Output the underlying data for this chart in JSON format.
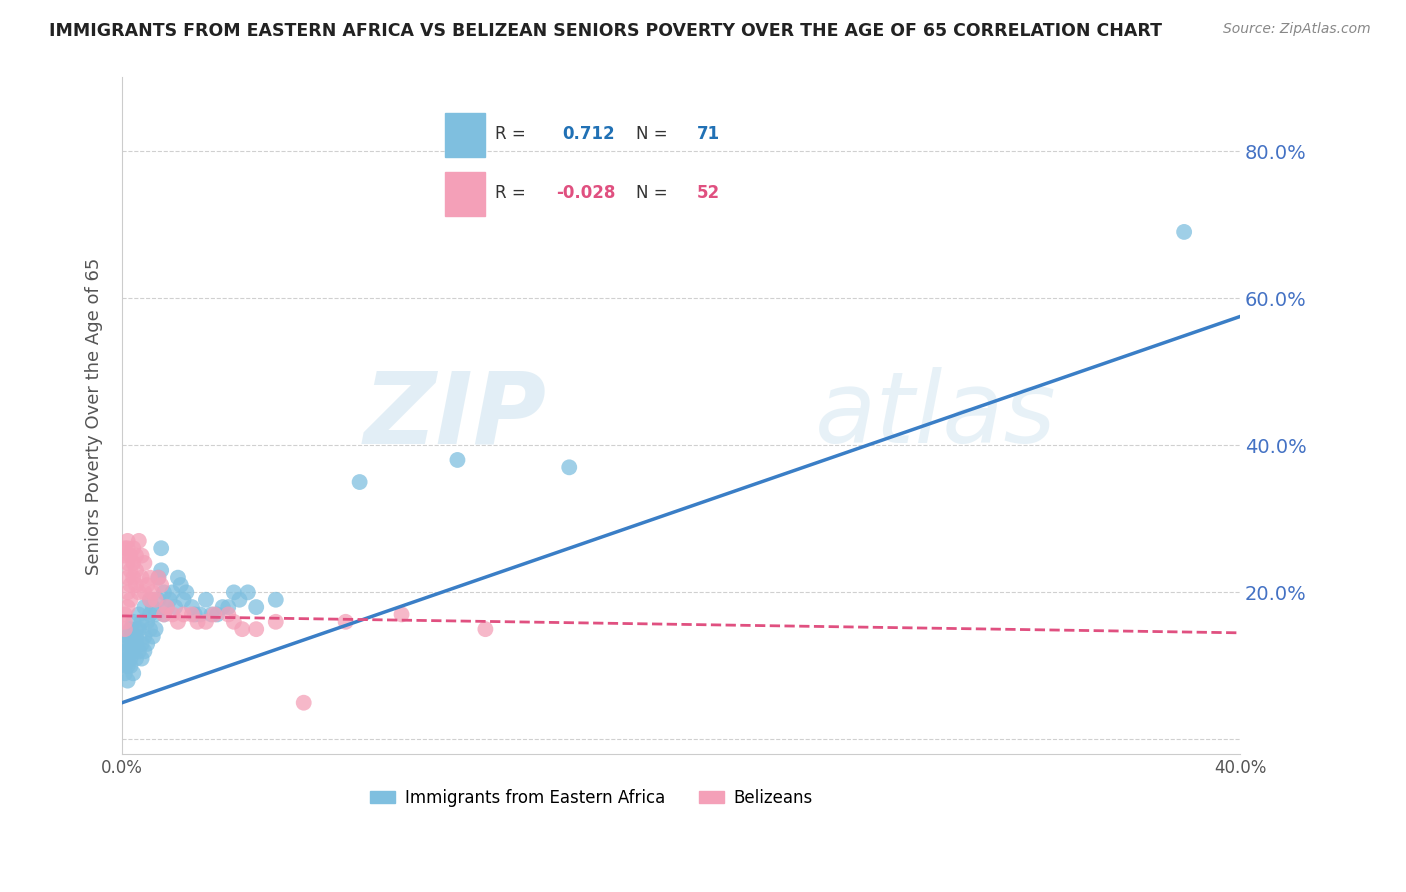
{
  "title": "IMMIGRANTS FROM EASTERN AFRICA VS BELIZEAN SENIORS POVERTY OVER THE AGE OF 65 CORRELATION CHART",
  "source": "Source: ZipAtlas.com",
  "ylabel": "Seniors Poverty Over the Age of 65",
  "xlim": [
    0.0,
    0.4
  ],
  "ylim": [
    -0.02,
    0.9
  ],
  "blue_R": "0.712",
  "blue_N": "71",
  "pink_R": "-0.028",
  "pink_N": "52",
  "blue_color": "#7fbfdf",
  "pink_color": "#f4a0b8",
  "blue_line_color": "#3a7ec6",
  "pink_line_color": "#e05080",
  "watermark_zip": "ZIP",
  "watermark_atlas": "atlas",
  "legend_label_blue": "Immigrants from Eastern Africa",
  "legend_label_pink": "Belizeans",
  "blue_line_x0": 0.0,
  "blue_line_y0": 0.05,
  "blue_line_x1": 0.4,
  "blue_line_y1": 0.575,
  "pink_line_x0": 0.0,
  "pink_line_y0": 0.168,
  "pink_line_x1": 0.4,
  "pink_line_y1": 0.145,
  "blue_x": [
    0.001,
    0.001,
    0.001,
    0.001,
    0.002,
    0.002,
    0.002,
    0.002,
    0.002,
    0.003,
    0.003,
    0.003,
    0.003,
    0.003,
    0.004,
    0.004,
    0.004,
    0.004,
    0.005,
    0.005,
    0.005,
    0.005,
    0.006,
    0.006,
    0.006,
    0.007,
    0.007,
    0.007,
    0.008,
    0.008,
    0.008,
    0.009,
    0.009,
    0.01,
    0.01,
    0.01,
    0.011,
    0.011,
    0.012,
    0.012,
    0.013,
    0.013,
    0.014,
    0.014,
    0.015,
    0.015,
    0.016,
    0.017,
    0.018,
    0.019,
    0.02,
    0.021,
    0.022,
    0.023,
    0.025,
    0.026,
    0.028,
    0.03,
    0.032,
    0.034,
    0.036,
    0.038,
    0.04,
    0.042,
    0.045,
    0.048,
    0.055,
    0.085,
    0.12,
    0.16,
    0.38
  ],
  "blue_y": [
    0.1,
    0.12,
    0.13,
    0.09,
    0.11,
    0.14,
    0.1,
    0.12,
    0.08,
    0.13,
    0.15,
    0.11,
    0.14,
    0.1,
    0.16,
    0.12,
    0.13,
    0.09,
    0.15,
    0.11,
    0.14,
    0.13,
    0.17,
    0.12,
    0.15,
    0.16,
    0.13,
    0.11,
    0.18,
    0.14,
    0.12,
    0.16,
    0.13,
    0.19,
    0.15,
    0.17,
    0.18,
    0.14,
    0.17,
    0.15,
    0.22,
    0.19,
    0.26,
    0.23,
    0.2,
    0.17,
    0.18,
    0.19,
    0.2,
    0.18,
    0.22,
    0.21,
    0.19,
    0.2,
    0.18,
    0.17,
    0.17,
    0.19,
    0.17,
    0.17,
    0.18,
    0.18,
    0.2,
    0.19,
    0.2,
    0.18,
    0.19,
    0.35,
    0.38,
    0.37,
    0.69
  ],
  "pink_x": [
    0.001,
    0.001,
    0.001,
    0.001,
    0.001,
    0.002,
    0.002,
    0.002,
    0.002,
    0.002,
    0.002,
    0.003,
    0.003,
    0.003,
    0.003,
    0.004,
    0.004,
    0.004,
    0.005,
    0.005,
    0.005,
    0.006,
    0.006,
    0.007,
    0.007,
    0.008,
    0.008,
    0.009,
    0.01,
    0.01,
    0.011,
    0.012,
    0.013,
    0.014,
    0.015,
    0.016,
    0.018,
    0.02,
    0.022,
    0.025,
    0.027,
    0.03,
    0.033,
    0.038,
    0.04,
    0.043,
    0.048,
    0.055,
    0.065,
    0.08,
    0.1,
    0.13
  ],
  "pink_y": [
    0.15,
    0.17,
    0.25,
    0.26,
    0.16,
    0.18,
    0.22,
    0.24,
    0.27,
    0.26,
    0.2,
    0.23,
    0.21,
    0.25,
    0.19,
    0.24,
    0.22,
    0.26,
    0.25,
    0.23,
    0.21,
    0.2,
    0.27,
    0.22,
    0.25,
    0.2,
    0.24,
    0.21,
    0.19,
    0.22,
    0.2,
    0.19,
    0.22,
    0.21,
    0.17,
    0.18,
    0.17,
    0.16,
    0.17,
    0.17,
    0.16,
    0.16,
    0.17,
    0.17,
    0.16,
    0.15,
    0.15,
    0.16,
    0.05,
    0.16,
    0.17,
    0.15
  ]
}
